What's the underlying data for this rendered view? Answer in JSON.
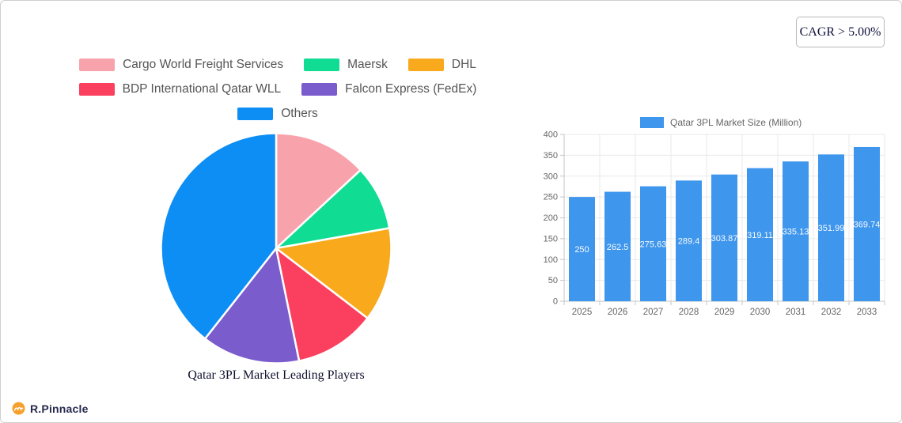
{
  "page": {
    "cagr_label": "CAGR > 5.00%",
    "brand": "R.Pinnacle",
    "brand_color": "#f5a12b"
  },
  "chart_data": [
    {
      "type": "pie",
      "title": "Qatar 3PL Market Leading Players",
      "legend_position": "top",
      "slices": [
        {
          "label": "Cargo World Freight Services",
          "value": 13.1,
          "color": "#f8a3ab"
        },
        {
          "label": "Maersk",
          "value": 9.1,
          "color": "#10dc94"
        },
        {
          "label": "DHL",
          "value": 13.2,
          "color": "#f8a91c"
        },
        {
          "label": "BDP International Qatar WLL",
          "value": 11.4,
          "color": "#fb3f5f"
        },
        {
          "label": "Falcon Express (FedEx)",
          "value": 13.8,
          "color": "#7a5ccd"
        },
        {
          "label": "Others",
          "value": 39.4,
          "color": "#0d8ef5"
        }
      ]
    },
    {
      "type": "bar",
      "legend": "Qatar 3PL Market Size (Million)",
      "categories": [
        "2025",
        "2026",
        "2027",
        "2028",
        "2029",
        "2030",
        "2031",
        "2032",
        "2033"
      ],
      "values": [
        250,
        262.5,
        275.63,
        289.4,
        303.87,
        319.11,
        335.13,
        351.99,
        369.74
      ],
      "bar_color": "#3f96ed",
      "ylim": [
        0,
        400
      ],
      "ytick_step": 50,
      "grid": true,
      "legend_position": "top"
    }
  ]
}
